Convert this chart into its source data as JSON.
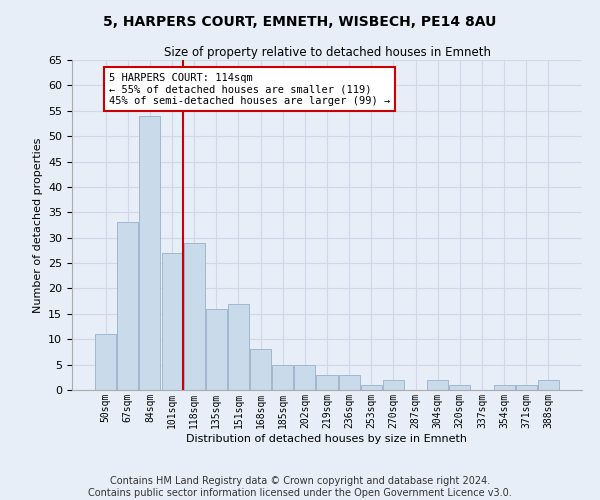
{
  "title": "5, HARPERS COURT, EMNETH, WISBECH, PE14 8AU",
  "subtitle": "Size of property relative to detached houses in Emneth",
  "xlabel": "Distribution of detached houses by size in Emneth",
  "ylabel": "Number of detached properties",
  "categories": [
    "50sqm",
    "67sqm",
    "84sqm",
    "101sqm",
    "118sqm",
    "135sqm",
    "151sqm",
    "168sqm",
    "185sqm",
    "202sqm",
    "219sqm",
    "236sqm",
    "253sqm",
    "270sqm",
    "287sqm",
    "304sqm",
    "320sqm",
    "337sqm",
    "354sqm",
    "371sqm",
    "388sqm"
  ],
  "values": [
    11,
    33,
    54,
    27,
    29,
    16,
    17,
    8,
    5,
    5,
    3,
    3,
    1,
    2,
    0,
    2,
    1,
    0,
    1,
    1,
    2
  ],
  "bar_color": "#c9daea",
  "bar_edge_color": "#a0b8d0",
  "grid_color": "#d0d8e8",
  "bg_color": "#e8eef8",
  "vline_color": "#cc0000",
  "annotation_text": "5 HARPERS COURT: 114sqm\n← 55% of detached houses are smaller (119)\n45% of semi-detached houses are larger (99) →",
  "annotation_box_color": "#ffffff",
  "annotation_box_edge": "#cc0000",
  "ylim": [
    0,
    65
  ],
  "yticks": [
    0,
    5,
    10,
    15,
    20,
    25,
    30,
    35,
    40,
    45,
    50,
    55,
    60,
    65
  ],
  "footer_line1": "Contains HM Land Registry data © Crown copyright and database right 2024.",
  "footer_line2": "Contains public sector information licensed under the Open Government Licence v3.0.",
  "title_fontsize": 10,
  "subtitle_fontsize": 8.5,
  "footer_fontsize": 7,
  "bin_width": 17
}
